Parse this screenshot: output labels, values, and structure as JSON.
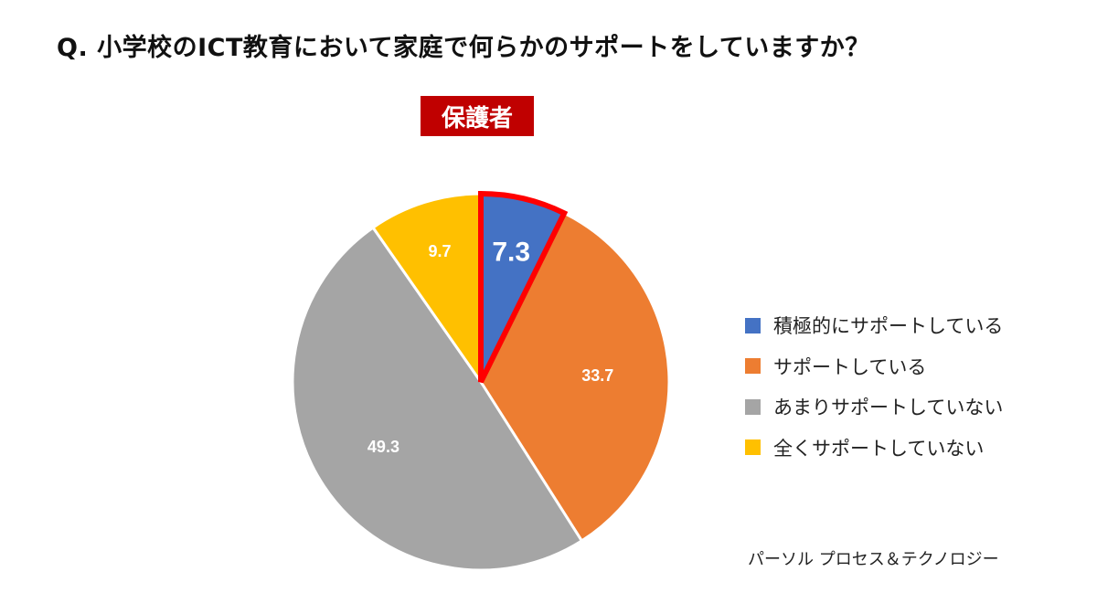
{
  "chart_data": {
    "type": "pie",
    "title": "Q.  小学校のICT教育において家庭で何らかのサポートをしていますか？",
    "subtitle": "保護者",
    "categories": [
      "積極的にサポートしている",
      "サポートしている",
      "あまりサポートしていない",
      "全くサポートしていない"
    ],
    "values": [
      7.3,
      33.7,
      49.3,
      9.7
    ],
    "value_labels": [
      "7.3",
      "33.7",
      "49.3",
      "9.7"
    ],
    "colors": [
      "#4472c4",
      "#ed7d31",
      "#a5a5a5",
      "#ffc000"
    ],
    "highlight_color": "#ff0000",
    "highlighted_slice": "積極的にサポートしている",
    "legend_position": "right",
    "start_angle": "top",
    "direction": "clockwise"
  },
  "source": "パーソル プロセス＆テクノロジー"
}
